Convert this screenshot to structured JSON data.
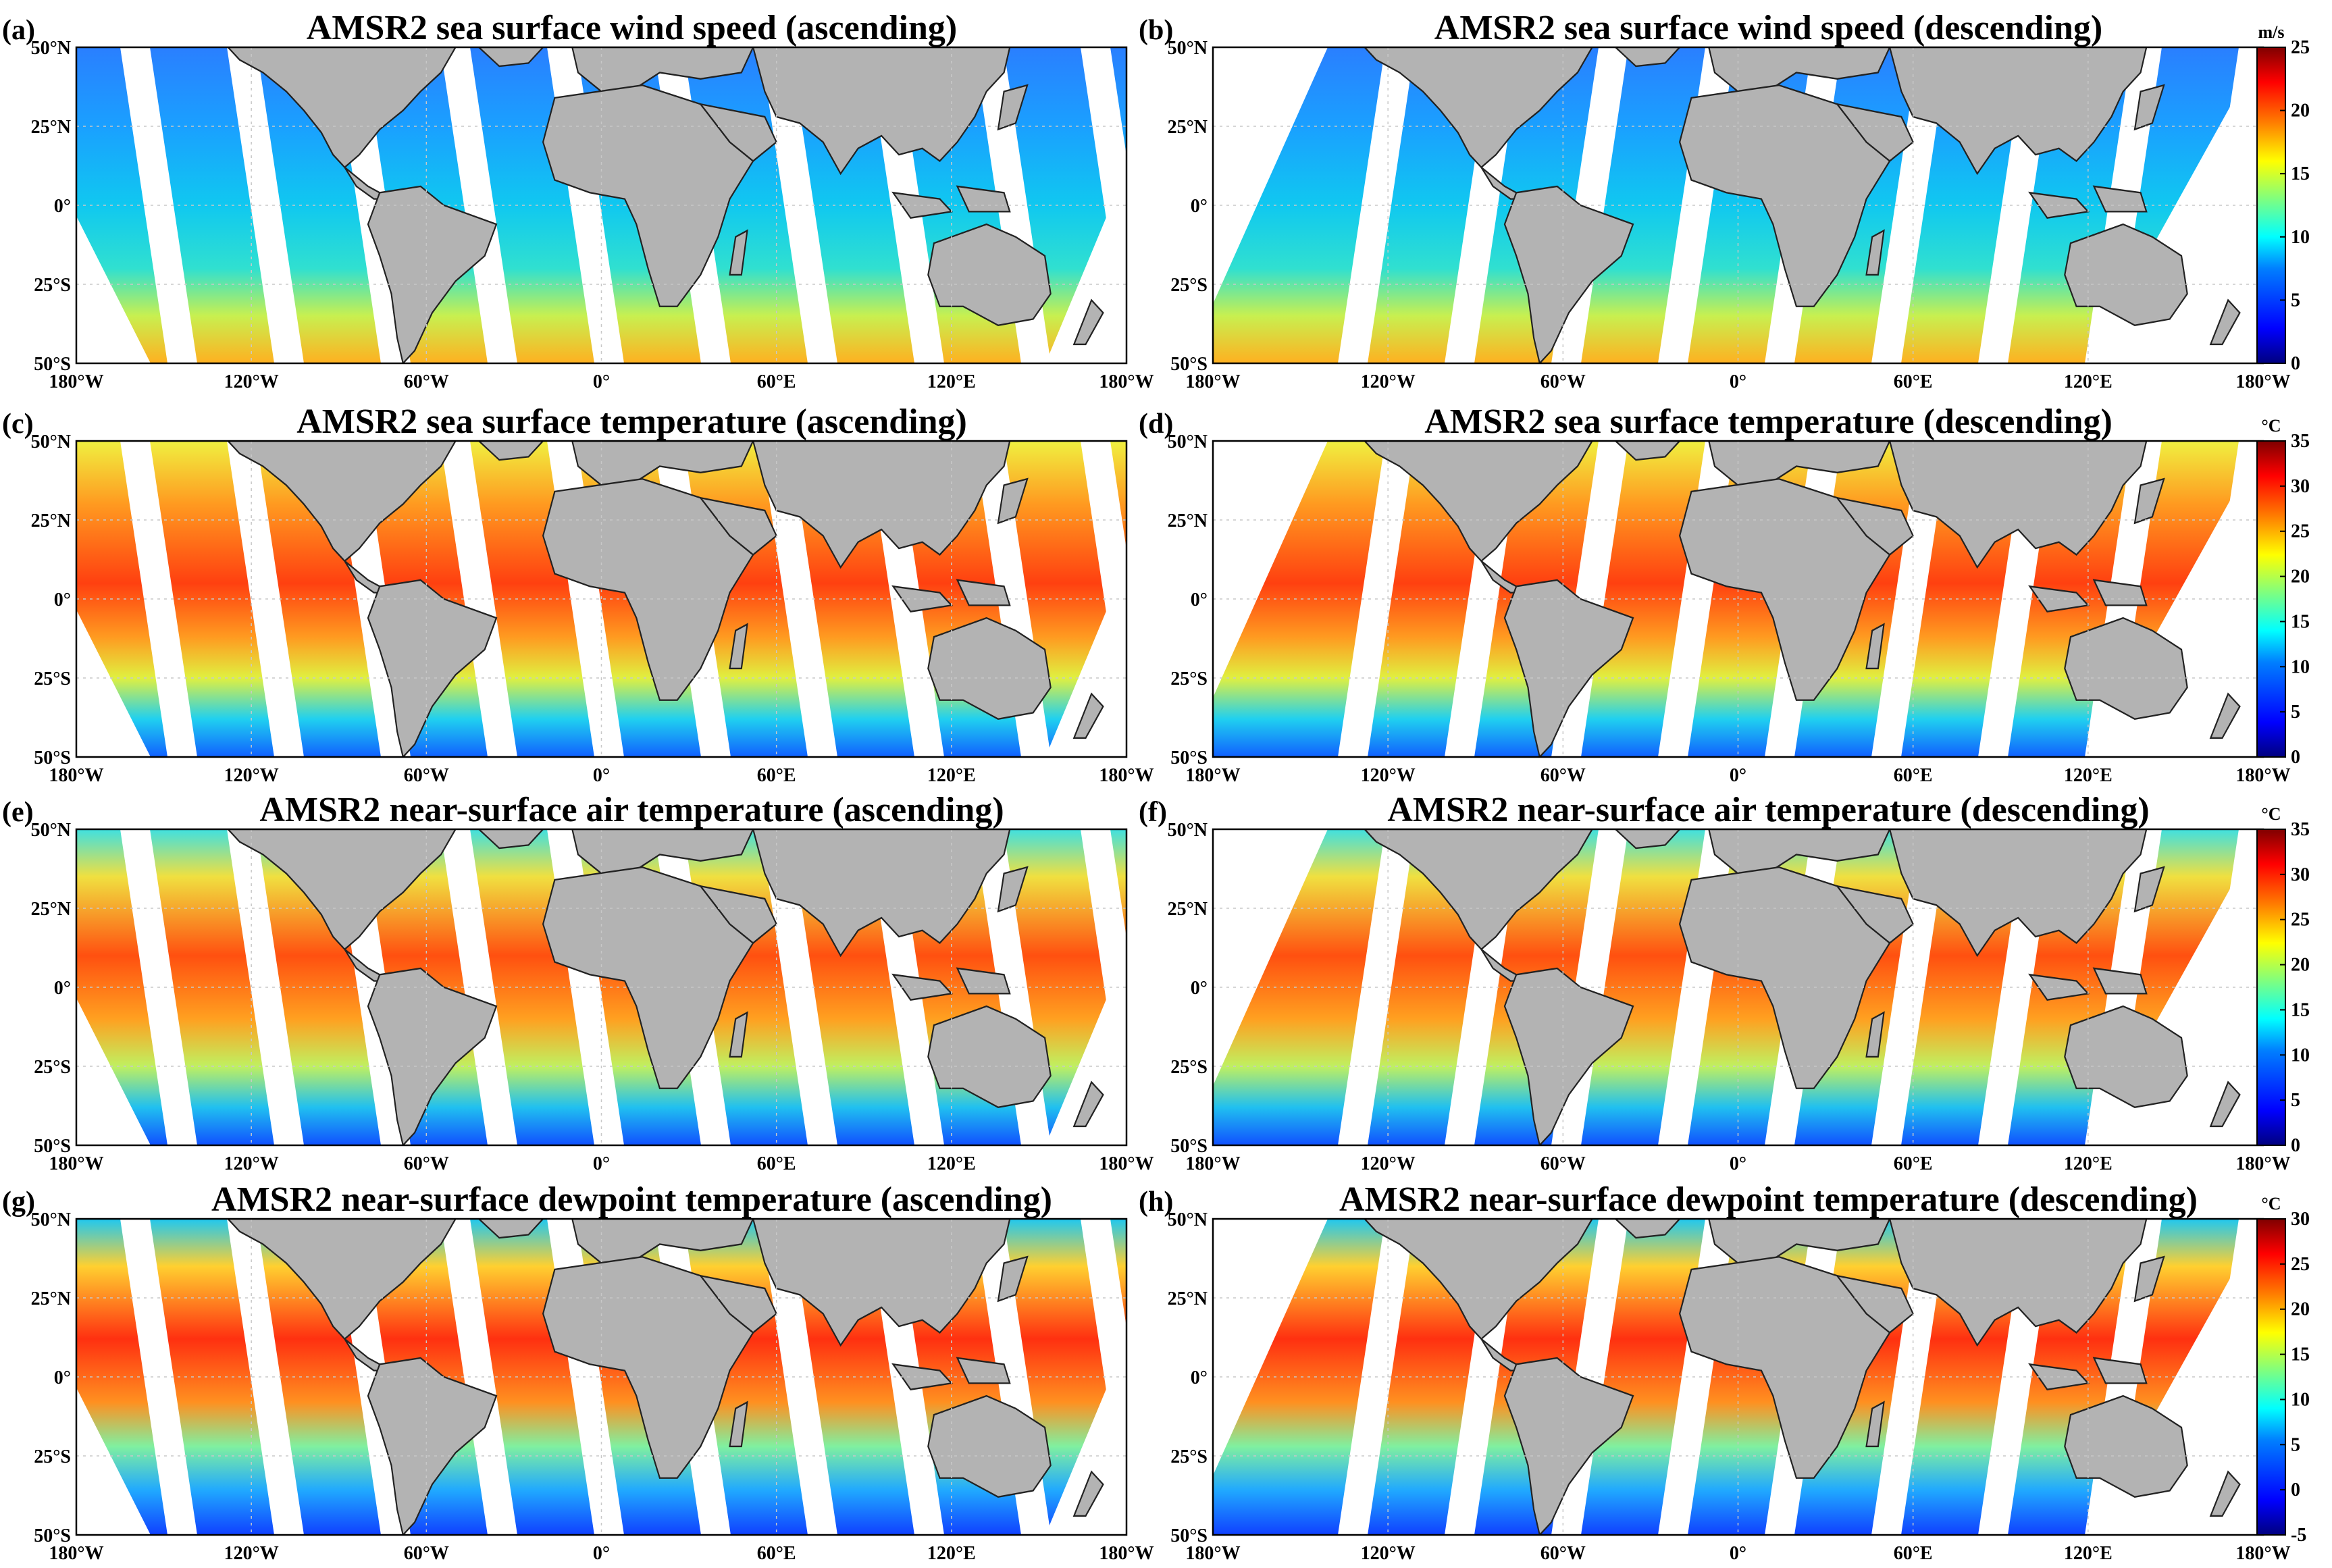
{
  "colors": {
    "land": "#b3b3b3",
    "gap": "#ffffff",
    "coast": "#222222",
    "colormap": [
      "#00007f",
      "#0000ff",
      "#007fff",
      "#00ffff",
      "#7fff7f",
      "#ffff00",
      "#ff7f00",
      "#ff0000",
      "#7f0000"
    ]
  },
  "lon_ticks": [
    "180°W",
    "120°W",
    "60°W",
    "0°",
    "60°E",
    "120°E",
    "180°W"
  ],
  "lat_ticks": [
    "50°N",
    "25°N",
    "0°",
    "25°S",
    "50°S"
  ],
  "panels": [
    {
      "id": "a",
      "label": "(a)",
      "title": "AMSR2 sea surface wind speed (ascending)",
      "variable": "wind",
      "pass": "ascending"
    },
    {
      "id": "b",
      "label": "(b)",
      "title": "AMSR2 sea surface wind speed (descending)",
      "variable": "wind",
      "pass": "descending"
    },
    {
      "id": "c",
      "label": "(c)",
      "title": "AMSR2 sea surface temperature (ascending)",
      "variable": "sst",
      "pass": "ascending"
    },
    {
      "id": "d",
      "label": "(d)",
      "title": "AMSR2 sea surface temperature (descending)",
      "variable": "sst",
      "pass": "descending"
    },
    {
      "id": "e",
      "label": "(e)",
      "title": "AMSR2 near-surface air temperature (ascending)",
      "variable": "air",
      "pass": "ascending"
    },
    {
      "id": "f",
      "label": "(f)",
      "title": "AMSR2 near-surface air temperature (descending)",
      "variable": "air",
      "pass": "descending"
    },
    {
      "id": "g",
      "label": "(g)",
      "title": "AMSR2 near-surface dewpoint temperature (ascending)",
      "variable": "dew",
      "pass": "ascending"
    },
    {
      "id": "h",
      "label": "(h)",
      "title": "AMSR2 near-surface dewpoint temperature (descending)",
      "variable": "dew",
      "pass": "descending"
    }
  ],
  "colorbars": [
    {
      "row": 0,
      "unit": "m/s",
      "ticks": [
        "0",
        "5",
        "10",
        "15",
        "20",
        "25"
      ],
      "min": 0,
      "max": 25
    },
    {
      "row": 1,
      "unit": "°C",
      "ticks": [
        "0",
        "5",
        "10",
        "15",
        "20",
        "25",
        "30",
        "35"
      ],
      "min": 0,
      "max": 35
    },
    {
      "row": 2,
      "unit": "°C",
      "ticks": [
        "0",
        "5",
        "10",
        "15",
        "20",
        "25",
        "30",
        "35"
      ],
      "min": 0,
      "max": 35
    },
    {
      "row": 3,
      "unit": "°C",
      "ticks": [
        "-5",
        "0",
        "5",
        "10",
        "15",
        "20",
        "25",
        "30"
      ],
      "min": -5,
      "max": 30
    }
  ]
}
